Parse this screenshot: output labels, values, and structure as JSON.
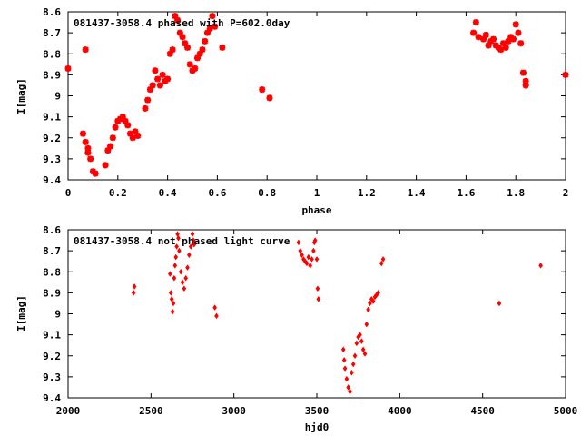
{
  "chart_data": [
    {
      "type": "scatter",
      "title": "081437-3058.4 phased with P=602.0day",
      "xlabel": "phase",
      "ylabel": "I[mag]",
      "xlim": [
        0,
        2
      ],
      "ylim": [
        8.6,
        9.4
      ],
      "y_inverted": true,
      "marker": "star",
      "color": "#ff0000",
      "xticks": [
        "0",
        "0.2",
        "0.4",
        "0.6",
        "0.8",
        "1",
        "1.2",
        "1.4",
        "1.6",
        "1.8",
        "2"
      ],
      "yticks": [
        "8.6",
        "8.7",
        "8.8",
        "8.9",
        "9",
        "9.1",
        "9.2",
        "9.3",
        "9.4"
      ],
      "x": [
        0.0,
        0.06,
        0.07,
        0.08,
        0.07,
        0.08,
        0.09,
        0.1,
        0.11,
        0.15,
        0.16,
        0.17,
        0.18,
        0.19,
        0.2,
        0.21,
        0.22,
        0.23,
        0.24,
        0.25,
        0.26,
        0.27,
        0.28,
        0.31,
        0.32,
        0.33,
        0.34,
        0.35,
        0.36,
        0.37,
        0.38,
        0.39,
        0.4,
        0.41,
        0.42,
        0.43,
        0.44,
        0.45,
        0.46,
        0.47,
        0.48,
        0.49,
        0.5,
        0.51,
        0.52,
        0.53,
        0.54,
        0.55,
        0.56,
        0.57,
        0.58,
        0.59,
        0.62,
        0.78,
        0.81,
        1.63,
        1.64,
        1.65,
        1.67,
        1.68,
        1.69,
        1.7,
        1.71,
        1.72,
        1.73,
        1.74,
        1.75,
        1.76,
        1.77,
        1.78,
        1.79,
        1.8,
        1.81,
        1.82,
        1.83,
        1.84,
        1.84,
        2.0
      ],
      "y": [
        8.87,
        9.18,
        8.78,
        9.25,
        9.22,
        9.27,
        9.3,
        9.36,
        9.37,
        9.33,
        9.26,
        9.24,
        9.2,
        9.15,
        9.12,
        9.11,
        9.1,
        9.12,
        9.14,
        9.18,
        9.2,
        9.17,
        9.19,
        9.06,
        9.02,
        8.97,
        8.95,
        8.88,
        8.92,
        8.95,
        8.9,
        8.93,
        8.92,
        8.8,
        8.78,
        8.62,
        8.64,
        8.7,
        8.72,
        8.75,
        8.77,
        8.85,
        8.88,
        8.87,
        8.82,
        8.8,
        8.78,
        8.74,
        8.7,
        8.68,
        8.62,
        8.67,
        8.77,
        8.97,
        9.01,
        8.7,
        8.65,
        8.72,
        8.73,
        8.71,
        8.76,
        8.74,
        8.73,
        8.76,
        8.77,
        8.78,
        8.75,
        8.77,
        8.74,
        8.72,
        8.73,
        8.66,
        8.7,
        8.75,
        8.89,
        8.93,
        8.95,
        8.9
      ]
    },
    {
      "type": "scatter",
      "title": "081437-3058.4 not phased light curve",
      "xlabel": "hjd0",
      "ylabel": "I[mag]",
      "xlim": [
        2000,
        5000
      ],
      "ylim": [
        8.6,
        9.4
      ],
      "y_inverted": true,
      "marker": "diamond",
      "color": "#ff0000",
      "xticks": [
        "2000",
        "2500",
        "3000",
        "3500",
        "4000",
        "4500",
        "5000"
      ],
      "yticks": [
        "8.6",
        "8.7",
        "8.8",
        "8.9",
        "9",
        "9.1",
        "9.2",
        "9.3",
        "9.4"
      ],
      "x": [
        2395,
        2400,
        2615,
        2620,
        2625,
        2630,
        2635,
        2640,
        2645,
        2650,
        2655,
        2660,
        2665,
        2670,
        2680,
        2690,
        2700,
        2710,
        2720,
        2730,
        2740,
        2750,
        2755,
        2760,
        2885,
        2895,
        3390,
        3400,
        3410,
        3420,
        3430,
        3440,
        3450,
        3460,
        3470,
        3480,
        3485,
        3490,
        3500,
        3505,
        3510,
        3660,
        3665,
        3670,
        3680,
        3690,
        3700,
        3710,
        3720,
        3730,
        3740,
        3750,
        3760,
        3770,
        3780,
        3790,
        3800,
        3810,
        3820,
        3830,
        3840,
        3850,
        3860,
        3870,
        3890,
        3900,
        4600,
        4850
      ],
      "y": [
        8.9,
        8.87,
        8.81,
        8.9,
        8.93,
        8.99,
        8.95,
        8.83,
        8.77,
        8.73,
        8.68,
        8.62,
        8.64,
        8.7,
        8.8,
        8.85,
        8.88,
        8.83,
        8.78,
        8.72,
        8.68,
        8.62,
        8.65,
        8.67,
        8.97,
        9.01,
        8.66,
        8.7,
        8.72,
        8.74,
        8.75,
        8.76,
        8.73,
        8.77,
        8.74,
        8.7,
        8.66,
        8.65,
        8.74,
        8.88,
        8.93,
        9.17,
        9.22,
        9.26,
        9.31,
        9.35,
        9.37,
        9.28,
        9.24,
        9.2,
        9.14,
        9.11,
        9.1,
        9.13,
        9.17,
        9.19,
        9.05,
        8.98,
        8.95,
        8.93,
        8.94,
        8.92,
        8.91,
        8.9,
        8.76,
        8.74,
        8.95,
        8.77
      ]
    }
  ]
}
